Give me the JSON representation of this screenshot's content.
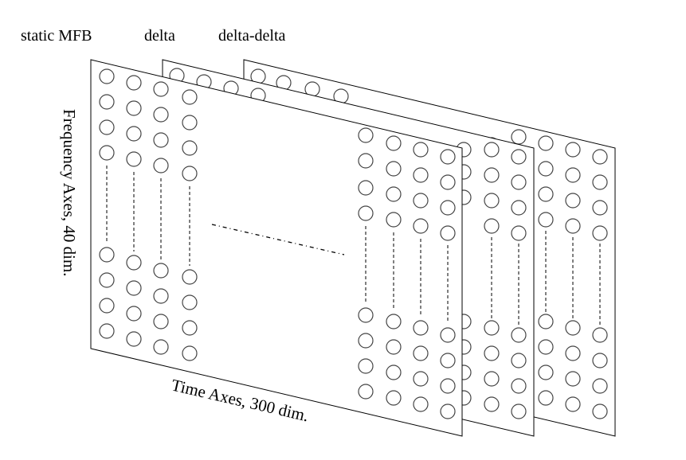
{
  "labels": {
    "layer_1": "static MFB",
    "layer_2": "delta",
    "layer_3": "delta-delta",
    "frequency_axis": "Frequency Axes, 40 dim.",
    "time_axis": "Time Axes, 300 dim."
  }
}
